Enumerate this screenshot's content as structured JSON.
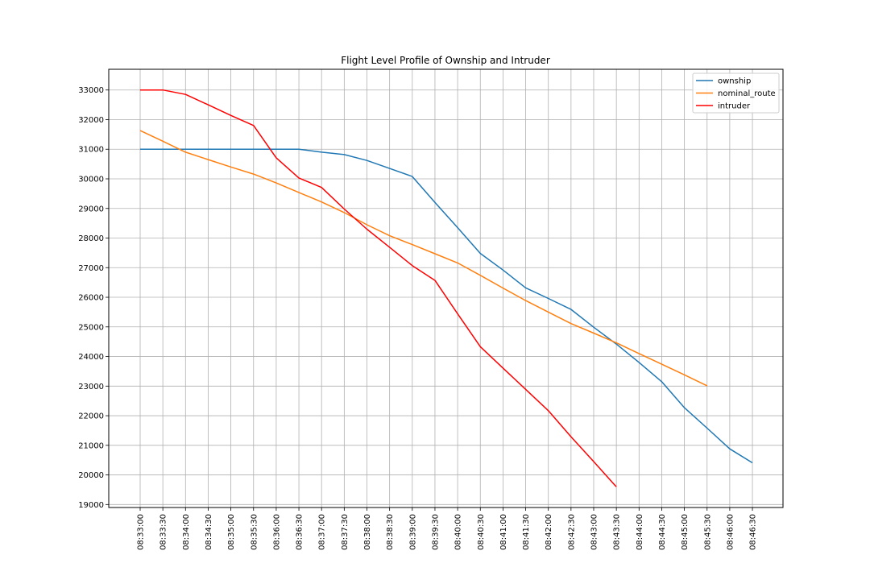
{
  "chart_data": {
    "type": "line",
    "title": "Flight Level Profile of Ownship and Intruder",
    "xlabel": "",
    "ylabel": "",
    "x": [
      "08:33:00",
      "08:33:30",
      "08:34:00",
      "08:34:30",
      "08:35:00",
      "08:35:30",
      "08:36:00",
      "08:36:30",
      "08:37:00",
      "08:37:30",
      "08:38:00",
      "08:38:30",
      "08:39:00",
      "08:39:30",
      "08:40:00",
      "08:40:30",
      "08:41:00",
      "08:41:30",
      "08:42:00",
      "08:42:30",
      "08:43:00",
      "08:43:30",
      "08:44:00",
      "08:44:30",
      "08:45:00",
      "08:45:30",
      "08:46:00",
      "08:46:30"
    ],
    "ylim": [
      18900,
      33700
    ],
    "yticks": [
      19000,
      20000,
      21000,
      22000,
      23000,
      24000,
      25000,
      26000,
      27000,
      28000,
      29000,
      30000,
      31000,
      32000,
      33000
    ],
    "grid": true,
    "legend_position": "top-right",
    "series": [
      {
        "name": "ownship",
        "color": "#1f77b4",
        "values": [
          31000,
          31000,
          31000,
          31000,
          31000,
          31000,
          31000,
          31000,
          30900,
          30820,
          30620,
          30350,
          30080,
          29200,
          28350,
          27480,
          26920,
          26320,
          25960,
          25590,
          24990,
          24420,
          23800,
          23150,
          22270,
          21580,
          20880,
          20410
        ]
      },
      {
        "name": "nominal_route",
        "color": "#ff7f0e",
        "values": [
          31630,
          31270,
          30900,
          30650,
          30400,
          30160,
          29860,
          29540,
          29220,
          28860,
          28450,
          28080,
          27780,
          27470,
          27160,
          26740,
          26310,
          25890,
          25500,
          25110,
          24790,
          24460,
          24100,
          23740,
          23380,
          23010,
          null,
          null
        ]
      },
      {
        "name": "intruder",
        "color": "#ff0000",
        "values": [
          33000,
          33000,
          32850,
          32500,
          32140,
          31800,
          30710,
          30030,
          29710,
          28980,
          28300,
          27690,
          27070,
          26570,
          25440,
          24330,
          23610,
          22890,
          22170,
          21290,
          20450,
          19600,
          null,
          null,
          null,
          null,
          null,
          null
        ]
      }
    ]
  }
}
